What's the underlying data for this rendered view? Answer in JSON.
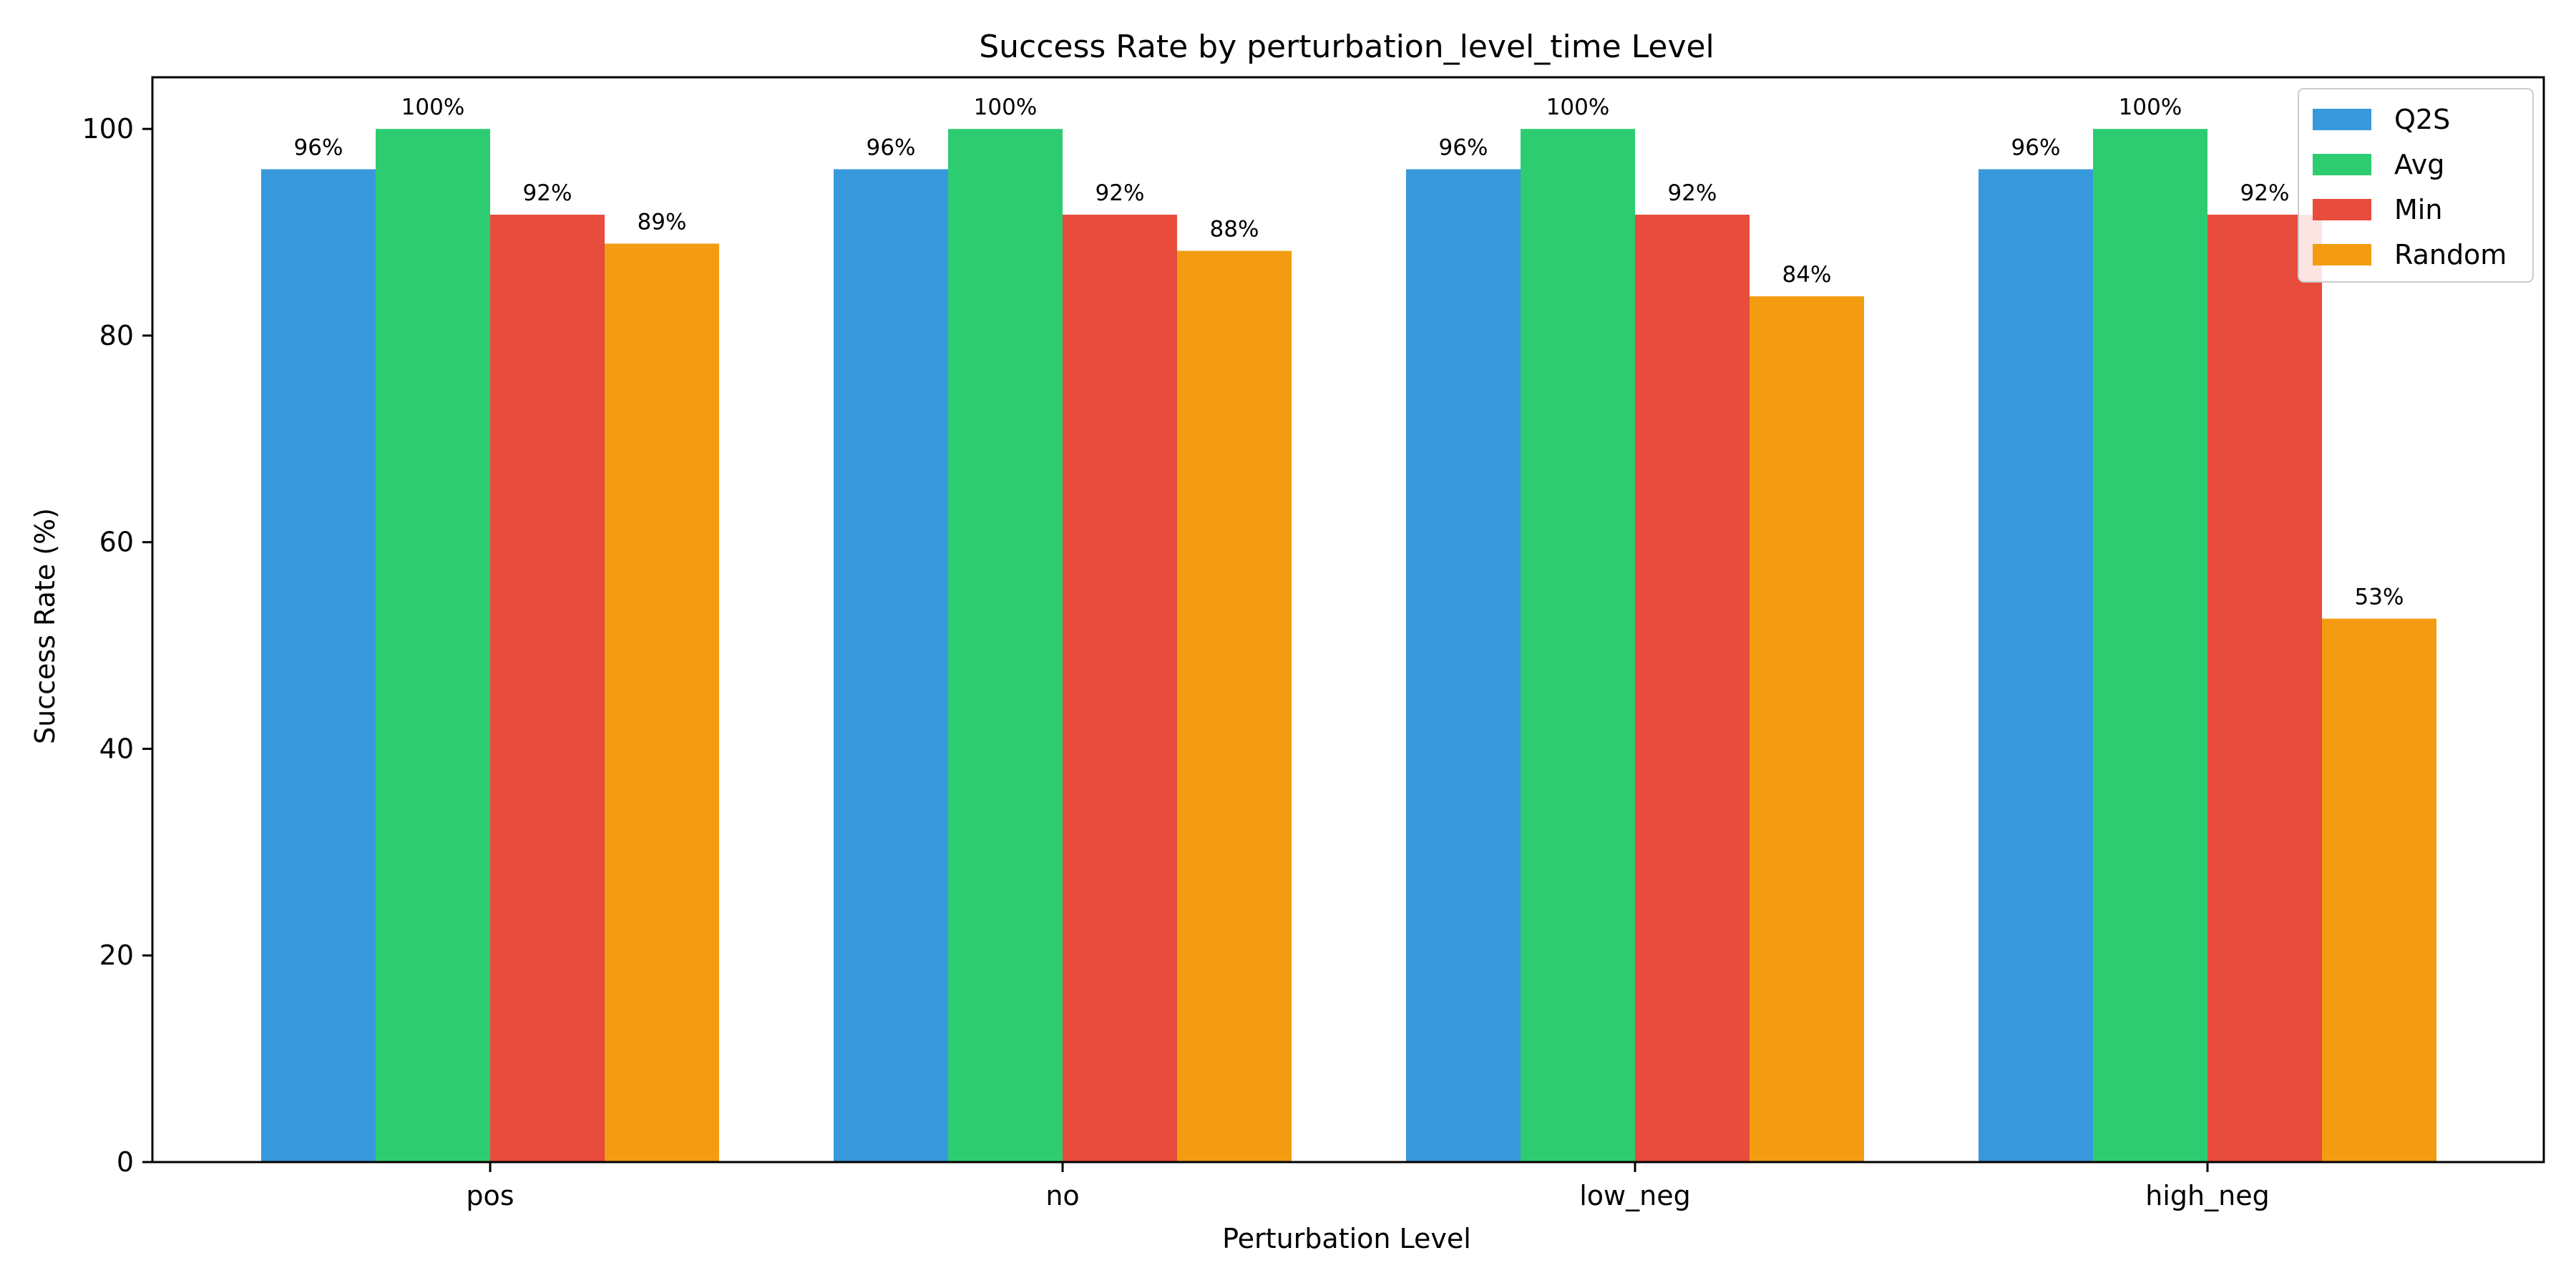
{
  "chart_data": {
    "type": "bar",
    "title": "Success Rate by perturbation_level_time Level",
    "xlabel": "Perturbation Level",
    "ylabel": "Success Rate (%)",
    "categories": [
      "pos",
      "no",
      "low_neg",
      "high_neg"
    ],
    "ylim": [
      0,
      105
    ],
    "yticks": [
      0,
      20,
      40,
      60,
      80,
      100
    ],
    "grid": false,
    "legend_position": "top-right",
    "series": [
      {
        "name": "Q2S",
        "color": "#3799db",
        "values": [
          96.1,
          96.1,
          96.1,
          96.1
        ],
        "labels": [
          "96%",
          "96%",
          "96%",
          "96%"
        ]
      },
      {
        "name": "Avg",
        "color": "#2ecc71",
        "values": [
          100,
          100,
          100,
          100
        ],
        "labels": [
          "100%",
          "100%",
          "100%",
          "100%"
        ]
      },
      {
        "name": "Min",
        "color": "#e74c3c",
        "values": [
          91.7,
          91.7,
          91.7,
          91.7
        ],
        "labels": [
          "92%",
          "92%",
          "92%",
          "92%"
        ]
      },
      {
        "name": "Random",
        "color": "#f39c12",
        "values": [
          88.9,
          88.2,
          83.8,
          52.6
        ],
        "labels": [
          "89%",
          "88%",
          "84%",
          "53%"
        ]
      }
    ]
  }
}
